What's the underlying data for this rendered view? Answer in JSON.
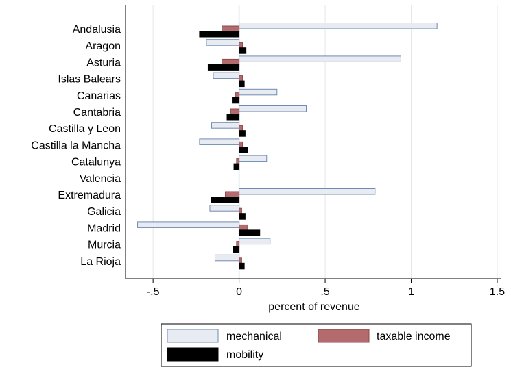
{
  "chart_data": {
    "type": "bar",
    "orientation": "horizontal",
    "categories": [
      "Andalusia",
      "Aragon",
      "Asturia",
      "Islas Balears",
      "Canarias",
      "Cantabria",
      "Castilla y Leon",
      "Castilla la Mancha",
      "Catalunya",
      "Valencia",
      "Extremadura",
      "Galicia",
      "Madrid",
      "Murcia",
      "La Rioja"
    ],
    "series": [
      {
        "name": "mechanical",
        "color": "#e8ecf2",
        "stroke": "#6e8bb0",
        "values": [
          1.15,
          -0.19,
          0.94,
          -0.15,
          0.22,
          0.39,
          -0.16,
          -0.23,
          0.16,
          0.0,
          0.79,
          -0.17,
          -0.59,
          0.18,
          -0.14
        ]
      },
      {
        "name": "taxable income",
        "color": "#b36b6e",
        "stroke": "#8a4a4e",
        "values": [
          -0.1,
          0.02,
          -0.1,
          0.02,
          -0.02,
          -0.05,
          0.02,
          0.02,
          -0.015,
          0.0,
          -0.08,
          0.015,
          0.05,
          -0.015,
          0.015
        ]
      },
      {
        "name": "mobility",
        "color": "#000000",
        "stroke": "#000000",
        "values": [
          -0.23,
          0.04,
          -0.18,
          0.03,
          -0.04,
          -0.07,
          0.035,
          0.05,
          -0.03,
          0.0,
          -0.16,
          0.035,
          0.12,
          -0.035,
          0.03
        ]
      }
    ],
    "xlabel": "percent of revenue",
    "ylabel": "",
    "xlim": [
      -0.66,
      1.52
    ],
    "xticks": [
      -0.5,
      0,
      0.5,
      1,
      1.5
    ],
    "xtick_labels": [
      "-.5",
      "0",
      ".5",
      "1",
      "1.5"
    ],
    "grid": "vertical",
    "legend_position": "bottom"
  }
}
